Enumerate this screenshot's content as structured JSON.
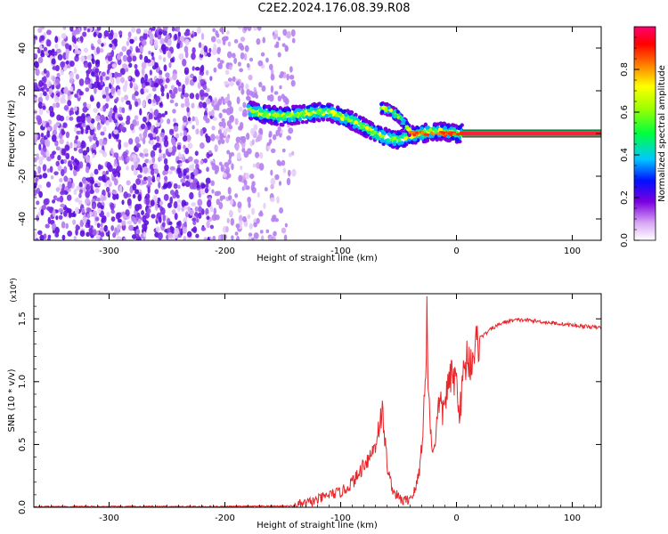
{
  "title": "C2E2.2024.176.08.39.R08",
  "chart_data": [
    {
      "type": "heatmap",
      "xlabel": "Height of straight line (km)",
      "ylabel": "Frequency (Hz)",
      "xlim": [
        -365,
        125
      ],
      "ylim": [
        -50,
        50
      ],
      "xticks": [
        -300,
        -200,
        -100,
        0,
        100
      ],
      "yticks": [
        -40,
        -20,
        0,
        20,
        40
      ],
      "colorbar": {
        "label": "Normalized spectral amplitude",
        "range": [
          0,
          1
        ],
        "ticks": [
          0.0,
          0.2,
          0.4,
          0.6,
          0.8
        ]
      },
      "noise_region_x": [
        -365,
        -145
      ],
      "signal_track": {
        "x": [
          -180,
          -165,
          -150,
          -135,
          -120,
          -110,
          -100,
          -90,
          -80,
          -70,
          -60,
          -50,
          -40,
          -30,
          -20,
          -10,
          0,
          5
        ],
        "y": [
          11,
          9,
          8,
          9,
          10,
          10,
          8,
          6,
          3,
          0,
          -2,
          -3,
          -1,
          0,
          1,
          1,
          0,
          0
        ]
      },
      "secondary_track": {
        "x": [
          -65,
          -58,
          -50,
          -44,
          -40
        ],
        "y": [
          12,
          11,
          8,
          4,
          1
        ]
      },
      "carrier_line": {
        "x": [
          5,
          125
        ],
        "y": 0
      }
    },
    {
      "type": "line",
      "xlabel": "Height of straight line (km)",
      "ylabel": "SNR (10 * v/v)",
      "yscale_label": "(x10⁴)",
      "xlim": [
        -365,
        125
      ],
      "ylim": [
        0,
        1.7
      ],
      "xticks": [
        -300,
        -200,
        -100,
        0,
        100
      ],
      "yticks": [
        0.0,
        0.5,
        1.0,
        1.5
      ],
      "ytick_labels": [
        "0.0",
        "0.5",
        "1.0",
        "1.5"
      ],
      "color": "#e8262a",
      "series": [
        {
          "x": [
            -365,
            -300,
            -200,
            -140,
            -130,
            -120,
            -110,
            -100,
            -95,
            -90,
            -85,
            -80,
            -75,
            -70,
            -67,
            -64,
            -62,
            -60,
            -57,
            -54,
            -50,
            -46,
            -42,
            -38,
            -35,
            -32,
            -30,
            -28,
            -27,
            -26,
            -25.5,
            -25,
            -24,
            -22,
            -20,
            -17,
            -15,
            -12,
            -9,
            -6,
            -3,
            0,
            3,
            6,
            9,
            12,
            15,
            18,
            20,
            25,
            30,
            40,
            50,
            60,
            70,
            80,
            90,
            100,
            110,
            125
          ],
          "y": [
            0.005,
            0.005,
            0.005,
            0.01,
            0.03,
            0.06,
            0.1,
            0.12,
            0.15,
            0.2,
            0.25,
            0.35,
            0.4,
            0.5,
            0.65,
            0.75,
            0.55,
            0.35,
            0.2,
            0.12,
            0.08,
            0.05,
            0.06,
            0.1,
            0.15,
            0.3,
            0.5,
            0.8,
            1.0,
            1.2,
            1.68,
            1.3,
            0.9,
            0.55,
            0.45,
            0.65,
            0.85,
            0.75,
            0.9,
            1.0,
            1.05,
            1.0,
            0.75,
            1.05,
            1.2,
            1.15,
            1.25,
            1.3,
            1.35,
            1.38,
            1.42,
            1.47,
            1.49,
            1.49,
            1.48,
            1.47,
            1.46,
            1.45,
            1.44,
            1.43
          ]
        }
      ]
    }
  ]
}
